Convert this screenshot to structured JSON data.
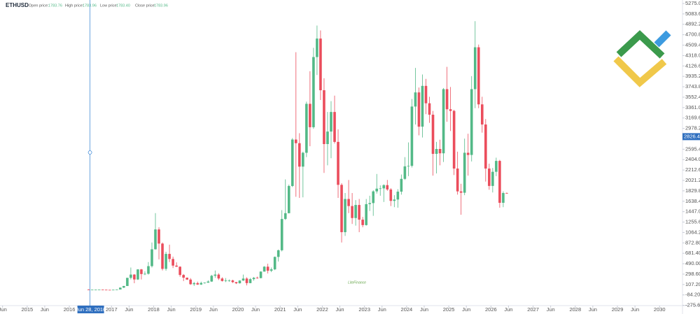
{
  "chart_data": {
    "type": "candlestick",
    "header": {
      "symbol": "ETHUSD",
      "open_label": "Open price:",
      "open": "1783.76",
      "high_label": "High price:",
      "high": "1783.96",
      "low_label": "Low price:",
      "low": "1783.40",
      "close_label": "Close price:",
      "close": "1783.96"
    },
    "up_color": "#53b987",
    "down_color": "#eb4d5c",
    "grid": false,
    "x": [
      "2016-06",
      "2016-07",
      "2016-08",
      "2016-09",
      "2016-10",
      "2016-11",
      "2016-12",
      "2017-01",
      "2017-02",
      "2017-03",
      "2017-04",
      "2017-05",
      "2017-06",
      "2017-07",
      "2017-08",
      "2017-09",
      "2017-10",
      "2017-11",
      "2017-12",
      "2018-01",
      "2018-02",
      "2018-03",
      "2018-04",
      "2018-05",
      "2018-06",
      "2018-07",
      "2018-08",
      "2018-09",
      "2018-10",
      "2018-11",
      "2018-12",
      "2019-01",
      "2019-02",
      "2019-03",
      "2019-04",
      "2019-05",
      "2019-06",
      "2019-07",
      "2019-08",
      "2019-09",
      "2019-10",
      "2019-11",
      "2019-12",
      "2020-01",
      "2020-02",
      "2020-03",
      "2020-04",
      "2020-05",
      "2020-06",
      "2020-07",
      "2020-08",
      "2020-09",
      "2020-10",
      "2020-11",
      "2020-12",
      "2021-01",
      "2021-02",
      "2021-03",
      "2021-04",
      "2021-05",
      "2021-06",
      "2021-07",
      "2021-08",
      "2021-09",
      "2021-10",
      "2021-11",
      "2021-12",
      "2022-01",
      "2022-02",
      "2022-03",
      "2022-04",
      "2022-05",
      "2022-06",
      "2022-07",
      "2022-08",
      "2022-09",
      "2022-10",
      "2022-11",
      "2022-12",
      "2023-01",
      "2023-02",
      "2023-03",
      "2023-04",
      "2023-05",
      "2023-06",
      "2023-07",
      "2023-08",
      "2023-09",
      "2023-10",
      "2023-11",
      "2023-12",
      "2024-01",
      "2024-02",
      "2024-03",
      "2024-04",
      "2024-05",
      "2024-06",
      "2024-07",
      "2024-08",
      "2024-09",
      "2024-10",
      "2024-11",
      "2024-12",
      "2025-01",
      "2025-02",
      "2025-03",
      "2025-04",
      "2025-05",
      "2025-06",
      "2025-07",
      "2025-08",
      "2025-09",
      "2025-10",
      "2025-11",
      "2025-12",
      "2026-01",
      "2026-02",
      "2026-03",
      "2026-04",
      "2026-05"
    ],
    "open": [
      14,
      12,
      12,
      12,
      13,
      11,
      9,
      8,
      11,
      16,
      50,
      80,
      230,
      290,
      200,
      385,
      300,
      305,
      445,
      755,
      1120,
      860,
      395,
      670,
      577,
      455,
      435,
      283,
      233,
      198,
      113,
      133,
      107,
      136,
      141,
      162,
      268,
      290,
      218,
      172,
      180,
      182,
      151,
      130,
      180,
      217,
      133,
      206,
      231,
      225,
      345,
      435,
      360,
      386,
      615,
      737,
      1312,
      1419,
      1919,
      2773,
      2706,
      2275,
      2530,
      3430,
      3000,
      4290,
      4630,
      3680,
      2690,
      2920,
      3280,
      2730,
      1940,
      1070,
      1680,
      1550,
      1330,
      1570,
      1300,
      1200,
      1585,
      1605,
      1820,
      1870,
      1875,
      1935,
      1855,
      1645,
      1670,
      1815,
      2050,
      2280,
      2290,
      3380,
      3640,
      3010,
      3760,
      3440,
      3230,
      2510,
      2600,
      2520,
      3700,
      3330,
      3300,
      2240,
      1820,
      1795,
      2530,
      2490,
      3700,
      4470,
      3420,
      3050,
      2240,
      1920,
      2180,
      2380,
      1610,
      1790
    ],
    "high": [
      21,
      15,
      13,
      14,
      14,
      12,
      9,
      12,
      17,
      53,
      82,
      230,
      420,
      300,
      390,
      395,
      350,
      520,
      880,
      1420,
      1160,
      880,
      710,
      840,
      620,
      515,
      440,
      300,
      235,
      225,
      155,
      160,
      160,
      145,
      185,
      285,
      365,
      315,
      240,
      225,
      200,
      195,
      155,
      185,
      290,
      240,
      227,
      245,
      252,
      350,
      445,
      490,
      420,
      622,
      750,
      1475,
      2040,
      1945,
      2800,
      4380,
      2890,
      2550,
      3470,
      4030,
      4460,
      4870,
      4780,
      3900,
      3280,
      3480,
      3580,
      2960,
      1970,
      1790,
      2030,
      1790,
      1660,
      1680,
      1350,
      1680,
      1740,
      1840,
      2140,
      1930,
      1950,
      2030,
      1880,
      1750,
      1860,
      2130,
      2450,
      2720,
      3520,
      4090,
      3730,
      3970,
      3890,
      3560,
      3300,
      2730,
      2770,
      3720,
      4110,
      3740,
      3320,
      2550,
      1960,
      2790,
      2880,
      3940,
      4950,
      4520,
      3560,
      3150,
      2330,
      2250,
      2440,
      2400,
      1820,
      1800
    ],
    "low": [
      11,
      10,
      10,
      11,
      10,
      8,
      6,
      8,
      10,
      16,
      43,
      80,
      200,
      130,
      190,
      200,
      280,
      290,
      420,
      750,
      570,
      365,
      360,
      520,
      410,
      430,
      250,
      170,
      190,
      100,
      81,
      100,
      100,
      125,
      140,
      155,
      230,
      190,
      162,
      152,
      158,
      135,
      117,
      125,
      175,
      90,
      130,
      177,
      215,
      221,
      345,
      310,
      335,
      372,
      530,
      715,
      1295,
      1415,
      1900,
      1720,
      1700,
      1710,
      2450,
      2650,
      2970,
      3960,
      3500,
      2160,
      2300,
      2430,
      2700,
      1700,
      880,
      1000,
      1420,
      1220,
      1190,
      1070,
      1160,
      1190,
      1460,
      1370,
      1780,
      1740,
      1625,
      1830,
      1550,
      1530,
      1520,
      1760,
      2030,
      2100,
      2260,
      3050,
      2850,
      2810,
      3240,
      3080,
      2110,
      2150,
      2300,
      2360,
      3100,
      2930,
      2120,
      1760,
      1390,
      1750,
      2110,
      2370,
      3350,
      3350,
      2900,
      2000,
      1850,
      1800,
      2100,
      1520,
      1530,
      1780
    ],
    "close": [
      12,
      12,
      12,
      13,
      11,
      9,
      8,
      11,
      16,
      50,
      80,
      230,
      290,
      200,
      385,
      300,
      305,
      445,
      755,
      1120,
      860,
      395,
      670,
      577,
      455,
      435,
      283,
      233,
      198,
      113,
      133,
      107,
      136,
      141,
      162,
      268,
      290,
      218,
      172,
      180,
      182,
      151,
      130,
      180,
      217,
      133,
      206,
      231,
      225,
      345,
      435,
      360,
      386,
      615,
      737,
      1312,
      1419,
      1919,
      2773,
      2706,
      2275,
      2530,
      3430,
      3000,
      4290,
      4630,
      3680,
      2690,
      2920,
      3280,
      2730,
      1940,
      1070,
      1680,
      1550,
      1330,
      1570,
      1300,
      1200,
      1585,
      1605,
      1820,
      1870,
      1875,
      1935,
      1855,
      1645,
      1670,
      1815,
      2050,
      2280,
      2290,
      3380,
      3640,
      3010,
      3760,
      3440,
      3230,
      2510,
      2600,
      2520,
      3700,
      3330,
      3300,
      2240,
      1820,
      1795,
      2530,
      2490,
      3700,
      4470,
      3420,
      3050,
      2240,
      1920,
      2180,
      2380,
      1610,
      1790,
      1784
    ],
    "ylim": [
      -275.6,
      5275
    ],
    "yticks": [
      {
        "value": 5275,
        "label": "5275.00"
      },
      {
        "value": 5083.6,
        "label": "5083.60"
      },
      {
        "value": 4892.2,
        "label": "4892.20"
      },
      {
        "value": 4700.8,
        "label": "4700.80"
      },
      {
        "value": 4509.4,
        "label": "4509.40"
      },
      {
        "value": 4318,
        "label": "4318.00"
      },
      {
        "value": 4126.6,
        "label": "4126.60"
      },
      {
        "value": 3935.2,
        "label": "3935.20"
      },
      {
        "value": 3743.8,
        "label": "3743.80"
      },
      {
        "value": 3552.4,
        "label": "3552.40"
      },
      {
        "value": 3361,
        "label": "3361.00"
      },
      {
        "value": 3169.6,
        "label": "3169.60"
      },
      {
        "value": 2978.2,
        "label": "2978.20"
      },
      {
        "value": 2595.4,
        "label": "2595.40"
      },
      {
        "value": 2404,
        "label": "2404.00"
      },
      {
        "value": 2212.6,
        "label": "2212.60"
      },
      {
        "value": 2021.2,
        "label": "2021.20"
      },
      {
        "value": 1829.8,
        "label": "1829.80"
      },
      {
        "value": 1638.4,
        "label": "1638.40"
      },
      {
        "value": 1447,
        "label": "1447.00"
      },
      {
        "value": 1255.6,
        "label": "1255.60"
      },
      {
        "value": 1064.2,
        "label": "1064.20"
      },
      {
        "value": 872.8,
        "label": "872.80"
      },
      {
        "value": 681.4,
        "label": "681.40"
      },
      {
        "value": 490,
        "label": "490.00"
      },
      {
        "value": 298.6,
        "label": "298.60"
      },
      {
        "value": 107.2,
        "label": "107.20"
      },
      {
        "value": -84.2,
        "label": "-84.20"
      },
      {
        "value": -275.6,
        "label": "-275.60"
      }
    ],
    "current_price": {
      "value": 2826.4,
      "label": "2826.40"
    },
    "xlim": [
      "2014-06",
      "2030-03"
    ],
    "xticks": [
      {
        "value": "2014-06",
        "label": "Jun"
      },
      {
        "value": "2015-01",
        "label": "2015"
      },
      {
        "value": "2015-06",
        "label": "Jun"
      },
      {
        "value": "2016-01",
        "label": "2016"
      },
      {
        "value": "2017-01",
        "label": "2017"
      },
      {
        "value": "2017-06",
        "label": "Jun"
      },
      {
        "value": "2018-01",
        "label": "2018"
      },
      {
        "value": "2018-06",
        "label": "Jun"
      },
      {
        "value": "2019-01",
        "label": "2019"
      },
      {
        "value": "2019-06",
        "label": "Jun"
      },
      {
        "value": "2020-01",
        "label": "2020"
      },
      {
        "value": "2020-06",
        "label": "Jun"
      },
      {
        "value": "2021-01",
        "label": "2021"
      },
      {
        "value": "2021-06",
        "label": "Jun"
      },
      {
        "value": "2022-01",
        "label": "2022"
      },
      {
        "value": "2022-06",
        "label": "Jun"
      },
      {
        "value": "2023-01",
        "label": "2023"
      },
      {
        "value": "2023-06",
        "label": "Jun"
      },
      {
        "value": "2024-01",
        "label": "2024"
      },
      {
        "value": "2024-06",
        "label": "Jun"
      },
      {
        "value": "2025-01",
        "label": "2025"
      },
      {
        "value": "2025-06",
        "label": "Jun"
      },
      {
        "value": "2026-01",
        "label": "2026"
      },
      {
        "value": "2026-06",
        "label": "Jun"
      },
      {
        "value": "2027-01",
        "label": "2027"
      },
      {
        "value": "2027-06",
        "label": "Jun"
      },
      {
        "value": "2028-01",
        "label": "2028"
      },
      {
        "value": "2028-06",
        "label": "Jun"
      },
      {
        "value": "2029-01",
        "label": "2029"
      },
      {
        "value": "2029-06",
        "label": "Jun"
      },
      {
        "value": "2030-01",
        "label": "2030"
      }
    ],
    "crosshair": {
      "label": "Jun 28, 2016"
    },
    "watermark": "LiteFinance"
  }
}
